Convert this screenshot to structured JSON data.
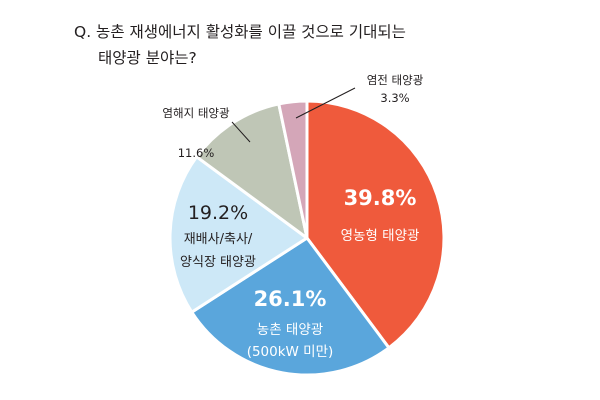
{
  "chart_data": {
    "type": "pie",
    "title_lines": [
      "Q. 농촌 재생에너지 활성화를 이끌 것으로 기대되는",
      "태양광 분야는?"
    ],
    "unit": "%",
    "slices": [
      {
        "label_lines": [
          "영농형 태양광"
        ],
        "value": 39.8,
        "value_text": "39.8%",
        "color": "#ef5a3c"
      },
      {
        "label_lines": [
          "농촌 태양광",
          "(500kW 미만)"
        ],
        "value": 26.1,
        "value_text": "26.1%",
        "color": "#5aa6dc"
      },
      {
        "label_lines": [
          "재배사/축사/",
          "양식장 태양광"
        ],
        "value": 19.2,
        "value_text": "19.2%",
        "color": "#cde8f7"
      },
      {
        "label_lines": [
          "염해지 태양광"
        ],
        "value": 11.6,
        "value_text": "11.6%",
        "color": "#bfc6b6"
      },
      {
        "label_lines": [
          "염전 태양광"
        ],
        "value": 3.3,
        "value_text": "3.3%",
        "color": "#d4a6b8"
      }
    ],
    "start_angle": "12 o'clock",
    "direction": "clockwise",
    "legend": "none"
  }
}
